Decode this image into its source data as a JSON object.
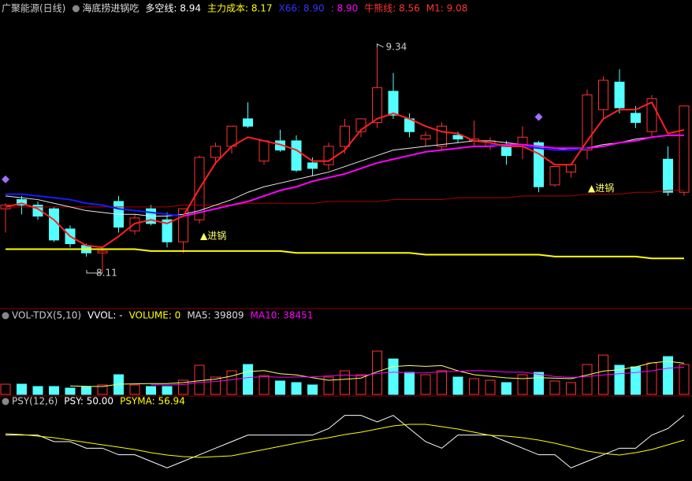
{
  "chart_data": [
    {
      "type": "candlestick",
      "title": "广聚能源(日线)",
      "subtitle": "海底捞进锅吃",
      "legend": [
        {
          "text": "多空线: 8.94",
          "color": "#ffffff"
        },
        {
          "text": "主力成本: 8.17",
          "color": "#ffff00"
        },
        {
          "text": "X66: 8.90",
          "color": "#3333ff"
        },
        {
          "text": ": 8.90",
          "color": "#ff00ff"
        },
        {
          "text": "牛熊线: 8.56",
          "color": "#ff3333"
        },
        {
          "text": "M1: 9.08",
          "color": "#ff3333"
        }
      ],
      "up_color": "#ff3232",
      "down_color": "#54ffff",
      "open": [
        8.46,
        8.51,
        8.48,
        8.46,
        8.35,
        8.26,
        8.22,
        8.5,
        8.34,
        8.46,
        8.4,
        8.28,
        8.4,
        8.74,
        8.8,
        8.95,
        8.72,
        8.83,
        8.83,
        8.71,
        8.7,
        8.8,
        8.88,
        8.93,
        9.1,
        8.95,
        8.84,
        8.8,
        8.86,
        8.83,
        8.8,
        8.81,
        8.8,
        8.82,
        8.59,
        8.66,
        8.78,
        9.0,
        9.15,
        8.98,
        8.88,
        8.73,
        8.55
      ],
      "high": [
        8.49,
        8.53,
        8.5,
        8.47,
        8.37,
        8.27,
        8.25,
        8.53,
        8.43,
        8.48,
        8.44,
        8.45,
        8.75,
        8.82,
        8.91,
        9.04,
        8.83,
        8.89,
        8.86,
        8.74,
        8.82,
        8.95,
        8.95,
        9.34,
        9.2,
        8.98,
        8.88,
        8.93,
        8.88,
        8.94,
        8.85,
        8.83,
        8.91,
        8.83,
        8.69,
        8.7,
        9.11,
        9.18,
        9.22,
        9.02,
        9.08,
        8.8,
        9.02
      ],
      "low": [
        8.33,
        8.43,
        8.4,
        8.28,
        8.25,
        8.2,
        8.11,
        8.33,
        8.32,
        8.37,
        8.25,
        8.22,
        8.38,
        8.7,
        8.76,
        8.9,
        8.7,
        8.77,
        8.66,
        8.64,
        8.67,
        8.76,
        8.85,
        8.9,
        8.95,
        8.85,
        8.8,
        8.78,
        8.82,
        8.8,
        8.78,
        8.7,
        8.73,
        8.55,
        8.58,
        8.63,
        8.73,
        8.95,
        8.98,
        8.9,
        8.85,
        8.53,
        8.53
      ],
      "close": [
        8.48,
        8.48,
        8.42,
        8.29,
        8.27,
        8.22,
        8.23,
        8.36,
        8.41,
        8.38,
        8.28,
        8.46,
        8.74,
        8.8,
        8.91,
        8.91,
        8.83,
        8.78,
        8.67,
        8.68,
        8.8,
        8.91,
        8.95,
        9.12,
        8.97,
        8.88,
        8.86,
        8.91,
        8.84,
        8.84,
        8.83,
        8.75,
        8.85,
        8.58,
        8.69,
        8.7,
        9.08,
        9.16,
        9.01,
        8.93,
        9.06,
        8.55,
        9.02
      ],
      "series": [
        {
          "color": "#ffff00",
          "width": 2,
          "values": [
            8.24,
            8.24,
            8.24,
            8.24,
            8.24,
            8.24,
            8.24,
            8.24,
            8.24,
            8.23,
            8.23,
            8.23,
            8.23,
            8.23,
            8.23,
            8.23,
            8.23,
            8.23,
            8.22,
            8.22,
            8.22,
            8.22,
            8.22,
            8.22,
            8.22,
            8.22,
            8.21,
            8.21,
            8.21,
            8.21,
            8.21,
            8.21,
            8.21,
            8.21,
            8.2,
            8.2,
            8.2,
            8.2,
            8.2,
            8.2,
            8.19,
            8.19,
            8.19
          ]
        },
        {
          "color": "#b00000",
          "width": 1,
          "values": [
            8.47,
            8.47,
            8.47,
            8.47,
            8.47,
            8.47,
            8.47,
            8.47,
            8.47,
            8.47,
            8.47,
            8.48,
            8.48,
            8.48,
            8.48,
            8.49,
            8.49,
            8.49,
            8.49,
            8.49,
            8.5,
            8.5,
            8.5,
            8.5,
            8.51,
            8.51,
            8.51,
            8.51,
            8.52,
            8.52,
            8.52,
            8.52,
            8.53,
            8.53,
            8.53,
            8.53,
            8.54,
            8.54,
            8.54,
            8.55,
            8.55,
            8.56,
            8.56
          ]
        },
        {
          "color": "#e8e8e8",
          "width": 1,
          "values": [
            8.53,
            8.52,
            8.51,
            8.49,
            8.47,
            8.45,
            8.44,
            8.43,
            8.43,
            8.42,
            8.42,
            8.43,
            8.45,
            8.48,
            8.51,
            8.55,
            8.58,
            8.6,
            8.62,
            8.64,
            8.66,
            8.69,
            8.72,
            8.75,
            8.78,
            8.79,
            8.8,
            8.81,
            8.82,
            8.83,
            8.83,
            8.82,
            8.81,
            8.8,
            8.79,
            8.78,
            8.79,
            8.81,
            8.82,
            8.84,
            8.85,
            8.86,
            8.86
          ]
        },
        {
          "color": "#ff00ff",
          "width": 2,
          "values": [
            null,
            null,
            null,
            null,
            null,
            null,
            null,
            null,
            null,
            null,
            null,
            8.42,
            8.44,
            8.46,
            8.48,
            8.5,
            8.53,
            8.56,
            8.58,
            8.61,
            8.63,
            8.65,
            8.68,
            8.71,
            8.73,
            8.75,
            8.77,
            8.78,
            8.79,
            8.8,
            8.8,
            8.81,
            8.81,
            8.8,
            8.79,
            8.79,
            8.79,
            8.8,
            8.82,
            8.83,
            8.85,
            8.86,
            8.86
          ]
        },
        {
          "color": "#1a1aff",
          "width": 2,
          "values": [
            8.54,
            8.54,
            8.53,
            8.52,
            8.51,
            8.49,
            8.48,
            8.46,
            8.45,
            8.44,
            8.43,
            8.42,
            null,
            null,
            null,
            null,
            null,
            null,
            null,
            null,
            null,
            null,
            null,
            null,
            null,
            null,
            null,
            null,
            null,
            null,
            8.81,
            8.8,
            8.8,
            8.79,
            8.78,
            8.78,
            8.79,
            null,
            null,
            null,
            null,
            null,
            null
          ]
        },
        {
          "color": "#ff2020",
          "width": 2,
          "values": [
            8.47,
            8.49,
            8.46,
            8.4,
            8.31,
            8.26,
            8.25,
            8.31,
            8.38,
            8.4,
            8.38,
            8.42,
            8.57,
            8.71,
            8.8,
            8.85,
            8.83,
            8.81,
            8.78,
            8.72,
            8.72,
            8.78,
            8.89,
            8.95,
            8.98,
            8.95,
            8.91,
            8.88,
            8.87,
            8.83,
            8.82,
            8.8,
            8.8,
            8.76,
            8.7,
            8.7,
            8.83,
            8.95,
            9.0,
            9.0,
            9.04,
            8.87,
            8.89
          ]
        }
      ],
      "signals": {
        "color": "#a070ff",
        "values": [
          8.62,
          null,
          null,
          null,
          null,
          null,
          null,
          null,
          null,
          null,
          null,
          null,
          null,
          null,
          null,
          null,
          null,
          null,
          null,
          null,
          null,
          null,
          null,
          null,
          null,
          null,
          null,
          null,
          null,
          null,
          null,
          null,
          null,
          8.96,
          null,
          null,
          null,
          null,
          null,
          null,
          null,
          null,
          null
        ]
      },
      "annotations": [
        {
          "text": "▲进锅",
          "x": 12,
          "y": 8.31,
          "color": "#ffff66"
        },
        {
          "text": "▲进锅",
          "x": 36,
          "y": 8.57,
          "color": "#ffff66"
        }
      ],
      "ylim": [
        7.925,
        9.52
      ]
    },
    {
      "type": "bar",
      "title": "VOL-TDX(5,10)",
      "legend": [
        {
          "text": "VVOL: -",
          "color": "#ffffff"
        },
        {
          "text": "VOLUME: 0",
          "color": "#ffff00"
        },
        {
          "text": "MA5: 39809",
          "color": "#dddddd"
        },
        {
          "text": "MA10: 38451",
          "color": "#ff00ff"
        }
      ],
      "values": [
        13650,
        13650,
        10500,
        10500,
        8400,
        10500,
        12600,
        26250,
        12600,
        10500,
        10500,
        18900,
        38850,
        23100,
        31500,
        39900,
        25200,
        17850,
        15750,
        12600,
        23100,
        31500,
        26250,
        57750,
        47250,
        29400,
        26250,
        31500,
        23100,
        21000,
        18900,
        15750,
        26250,
        29400,
        17850,
        15750,
        39900,
        52500,
        38850,
        36750,
        42000,
        50400,
        39900
      ],
      "series": [
        {
          "color": "#ffff66",
          "values": [
            null,
            null,
            null,
            null,
            11340,
            10710,
            10500,
            13650,
            14070,
            14490,
            14490,
            15750,
            18270,
            20370,
            24570,
            30450,
            31710,
            27510,
            26040,
            22260,
            18900,
            20160,
            21840,
            30240,
            37170,
            38430,
            37380,
            38430,
            31500,
            26250,
            24150,
            22050,
            21000,
            22260,
            21630,
            21000,
            25830,
            31080,
            32970,
            36750,
            42000,
            44100,
            41580
          ]
        },
        {
          "color": "#ff00ff",
          "values": [
            null,
            null,
            null,
            null,
            null,
            null,
            null,
            null,
            null,
            12915,
            12600,
            13125,
            15960,
            17220,
            19530,
            22470,
            23730,
            22890,
            23205,
            23415,
            24675,
            25935,
            24675,
            28140,
            29715,
            28665,
            28770,
            30135,
            30870,
            31710,
            31290,
            29715,
            29715,
            26880,
            23940,
            22575,
            23940,
            26040,
            27615,
            29190,
            31500,
            34965,
            36330
          ]
        }
      ],
      "ylim": [
        0,
        99750
      ]
    },
    {
      "type": "line",
      "title": "PSY(12,6)",
      "legend": [
        {
          "text": "PSY: 50.00",
          "color": "#ffffff"
        },
        {
          "text": "PSYMA: 56.94",
          "color": "#ffff00"
        }
      ],
      "series": [
        {
          "color": "#ffffff",
          "values": [
            58.33,
            58.33,
            58.33,
            50,
            50,
            41.67,
            41.67,
            33.33,
            33.33,
            25,
            16.67,
            25,
            33.33,
            41.67,
            50,
            58.33,
            58.33,
            58.33,
            58.33,
            58.33,
            66.67,
            83.33,
            83.33,
            75,
            83.33,
            66.67,
            50,
            41.67,
            58.33,
            58.33,
            58.33,
            50,
            41.67,
            33.33,
            33.33,
            16.67,
            25,
            33.33,
            41.67,
            41.67,
            58.33,
            66.67,
            83.33
          ]
        },
        {
          "color": "#ffff00",
          "values": [
            60,
            59,
            57,
            55,
            52,
            49,
            46,
            43,
            40,
            36,
            33,
            31,
            30,
            31,
            32,
            36,
            40,
            44,
            48,
            52,
            55,
            59,
            62,
            66,
            70,
            72,
            72,
            69,
            66,
            62,
            58,
            57,
            55,
            52,
            48,
            43,
            38,
            35,
            33,
            36,
            40,
            46,
            52
          ]
        }
      ],
      "ylim": [
        0,
        100
      ]
    }
  ]
}
